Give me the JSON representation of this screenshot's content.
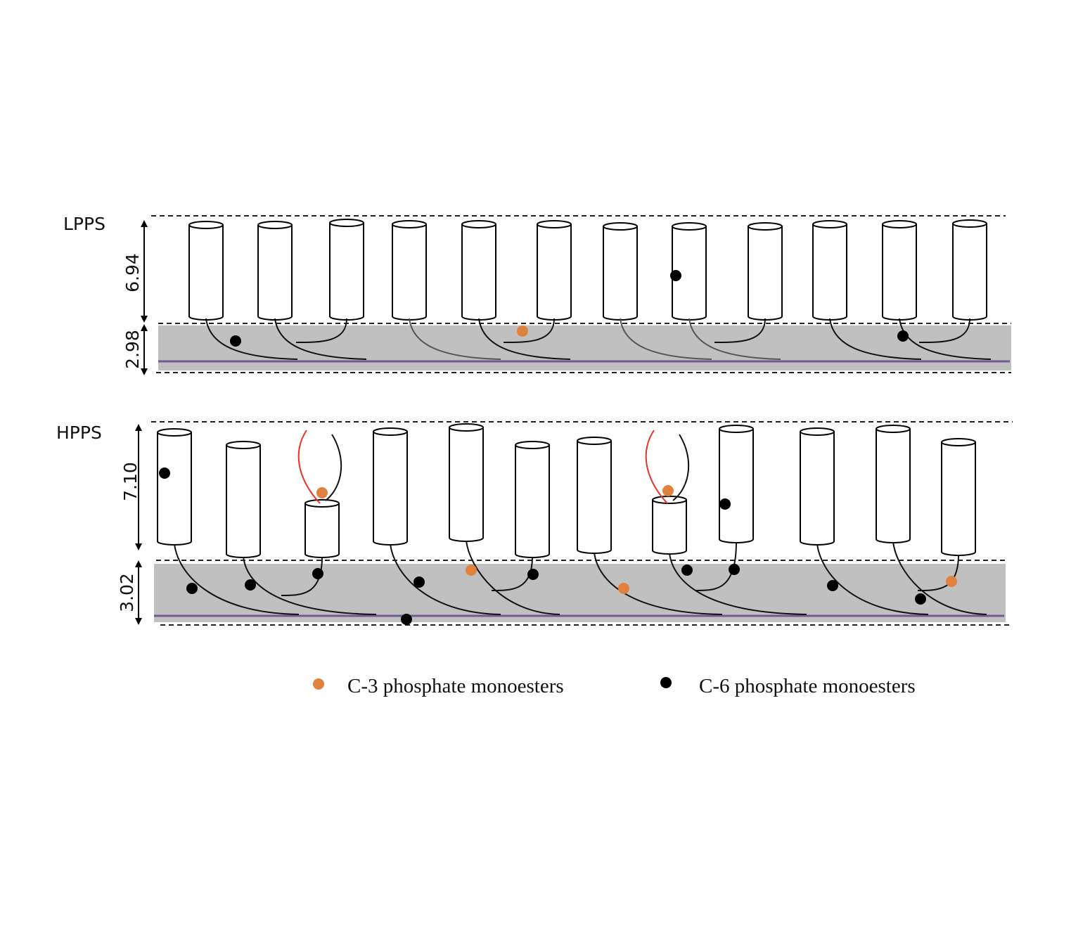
{
  "panels": [
    {
      "label": "LPPS",
      "upper_dimension": "6.94",
      "lower_dimension": "2.98"
    },
    {
      "label": "HPPS",
      "upper_dimension": "7.10",
      "lower_dimension": "3.02"
    }
  ],
  "legend": [
    {
      "label": "C-3 phosphate monoesters",
      "color": "#e0813f"
    },
    {
      "label": "C-6 phosphate monoesters",
      "color": "#000000"
    }
  ],
  "colors": {
    "band": "#c0c0c0",
    "surface_line": "#6f5a94",
    "loop_red": "#e8332a",
    "c3": "#e0813f",
    "c6": "#000000"
  }
}
